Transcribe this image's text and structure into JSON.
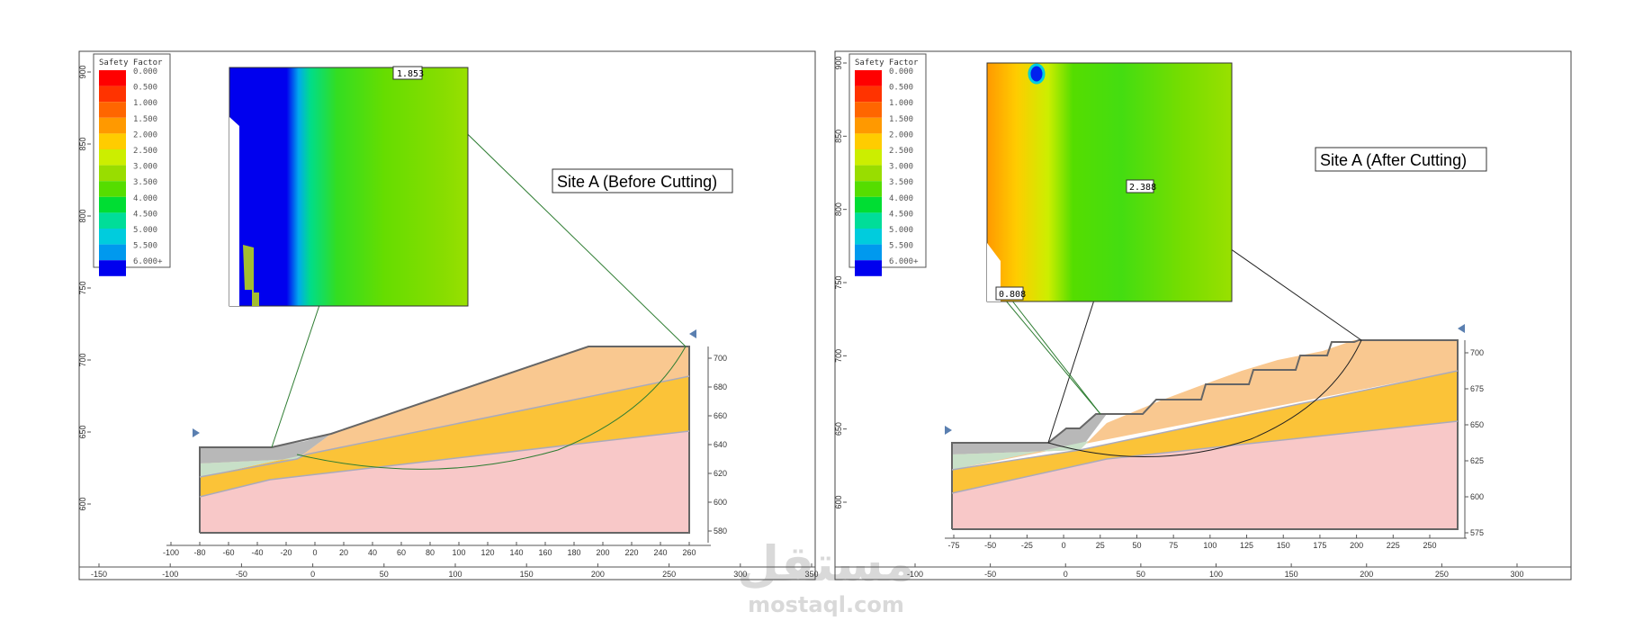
{
  "left_panel": {
    "site_label": "Site A (Before Cutting)",
    "legend_title": "Safety Factor",
    "legend": [
      {
        "label": "0.000",
        "color": "#ff0000"
      },
      {
        "label": "0.500",
        "color": "#ff3300"
      },
      {
        "label": "1.000",
        "color": "#ff6600"
      },
      {
        "label": "1.500",
        "color": "#ff9900"
      },
      {
        "label": "2.000",
        "color": "#ffcc00"
      },
      {
        "label": "2.500",
        "color": "#ccee00"
      },
      {
        "label": "3.000",
        "color": "#99dd00"
      },
      {
        "label": "3.500",
        "color": "#55dd00"
      },
      {
        "label": "4.000",
        "color": "#00dd33"
      },
      {
        "label": "4.500",
        "color": "#00dd99"
      },
      {
        "label": "5.000",
        "color": "#00ccdd"
      },
      {
        "label": "5.500",
        "color": "#0099ee"
      },
      {
        "label": "6.000+",
        "color": "#0000ee"
      }
    ],
    "min_fs_label": "1.853",
    "y_axis_left": [
      "900",
      "850",
      "800",
      "750",
      "700",
      "650",
      "600"
    ],
    "y_axis_right": [
      "700",
      "680",
      "660",
      "640",
      "620",
      "600",
      "580"
    ],
    "x_axis_inner": [
      "-100",
      "-80",
      "-60",
      "-40",
      "-20",
      "0",
      "20",
      "40",
      "60",
      "80",
      "100",
      "120",
      "140",
      "160",
      "180",
      "200",
      "220",
      "240",
      "260"
    ],
    "x_axis_outer": [
      "-150",
      "-100",
      "-50",
      "0",
      "50",
      "100",
      "150",
      "200",
      "250",
      "300",
      "350"
    ]
  },
  "right_panel": {
    "site_label": "Site A (After Cutting)",
    "legend_title": "Safety Factor",
    "legend": [
      {
        "label": "0.000",
        "color": "#ff0000"
      },
      {
        "label": "0.500",
        "color": "#ff3300"
      },
      {
        "label": "1.000",
        "color": "#ff6600"
      },
      {
        "label": "1.500",
        "color": "#ff9900"
      },
      {
        "label": "2.000",
        "color": "#ffcc00"
      },
      {
        "label": "2.500",
        "color": "#ccee00"
      },
      {
        "label": "3.000",
        "color": "#99dd00"
      },
      {
        "label": "3.500",
        "color": "#55dd00"
      },
      {
        "label": "4.000",
        "color": "#00dd33"
      },
      {
        "label": "4.500",
        "color": "#00dd99"
      },
      {
        "label": "5.000",
        "color": "#00ccdd"
      },
      {
        "label": "5.500",
        "color": "#0099ee"
      },
      {
        "label": "6.000+",
        "color": "#0000ee"
      }
    ],
    "min_fs_label": "2.388",
    "low_fs_label": "0.808",
    "y_axis_left": [
      "900",
      "850",
      "800",
      "750",
      "700",
      "650",
      "600"
    ],
    "y_axis_right": [
      "700",
      "675",
      "650",
      "625",
      "600",
      "575"
    ],
    "x_axis_inner": [
      "-75",
      "-50",
      "-25",
      "0",
      "25",
      "50",
      "75",
      "100",
      "125",
      "150",
      "175",
      "200",
      "225",
      "250"
    ],
    "x_axis_outer": [
      "-100",
      "-50",
      "0",
      "50",
      "100",
      "150",
      "200",
      "250",
      "300"
    ]
  },
  "watermark": {
    "arabic": "مستقل",
    "latin": "mostaql.com"
  }
}
